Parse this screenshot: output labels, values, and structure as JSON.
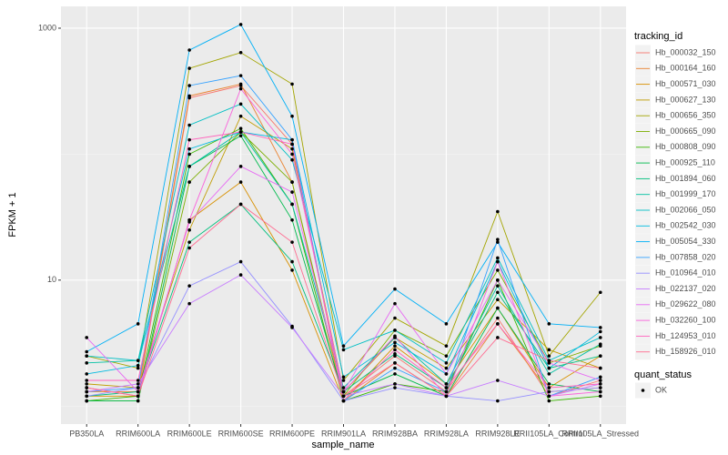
{
  "chart_data": {
    "type": "line",
    "x_label": "sample_name",
    "y_label": "FPKM + 1",
    "categories": [
      "PB350LA",
      "RRIM600LA",
      "RRIM600LE",
      "RRIM600SE",
      "RRIM600PE",
      "RRIM901LA",
      "RRIM928BA",
      "RRIM928LA",
      "RRIM928LE",
      "RRII105LA_Control",
      "RRII105LA_Stressed"
    ],
    "log_y": true,
    "ylim": [
      0.72,
      1490
    ],
    "yticks": [
      10,
      1000
    ],
    "y_minor_ticks": [
      1,
      100
    ],
    "grid": true,
    "legend_title": "tracking_id",
    "legend_position": "right",
    "point_color": "#000000",
    "series": [
      {
        "name": "Hb_000032_150",
        "color": "#F8766D",
        "values": [
          1.4,
          1.2,
          280,
          350,
          120,
          1.2,
          2.5,
          1.3,
          5,
          1.2,
          1.6
        ]
      },
      {
        "name": "Hb_000164_160",
        "color": "#EA8331",
        "values": [
          1.3,
          1.3,
          290,
          360,
          60,
          1.1,
          2.2,
          1.2,
          4.5,
          1.3,
          1.4
        ]
      },
      {
        "name": "Hb_000571_030",
        "color": "#D89000",
        "values": [
          1.2,
          1.2,
          30,
          60,
          12,
          1.1,
          3,
          1.5,
          6,
          1.4,
          2.5
        ]
      },
      {
        "name": "Hb_000627_130",
        "color": "#C09B00",
        "values": [
          1.5,
          1.4,
          25,
          200,
          110,
          1.3,
          3.5,
          2,
          7,
          2.8,
          2
        ]
      },
      {
        "name": "Hb_000656_350",
        "color": "#A3A500",
        "values": [
          2.5,
          2,
          480,
          640,
          360,
          1.6,
          5,
          3,
          35,
          2.5,
          8
        ]
      },
      {
        "name": "Hb_000665_090",
        "color": "#7CAE00",
        "values": [
          1.1,
          1.1,
          60,
          150,
          60,
          1.2,
          4,
          2.5,
          12,
          2.2,
          3
        ]
      },
      {
        "name": "Hb_000808_090",
        "color": "#39B600",
        "values": [
          1.1,
          1.2,
          100,
          160,
          40,
          1.1,
          1.5,
          1.3,
          10,
          1.1,
          1.2
        ]
      },
      {
        "name": "Hb_000925_110",
        "color": "#00BB4E",
        "values": [
          1.1,
          1.1,
          80,
          140,
          30,
          1.2,
          1.8,
          1.2,
          6,
          1.5,
          1.3
        ]
      },
      {
        "name": "Hb_001894_060",
        "color": "#00BF7D",
        "values": [
          1.2,
          1.3,
          20,
          40,
          14,
          1.3,
          2.6,
          1.4,
          8,
          2,
          2.5
        ]
      },
      {
        "name": "Hb_001999_170",
        "color": "#00C1A3",
        "values": [
          2.2,
          2.3,
          80,
          150,
          40,
          1.4,
          3.5,
          1.5,
          9,
          1.8,
          3.1
        ]
      },
      {
        "name": "Hb_002066_050",
        "color": "#00BFC4",
        "values": [
          2.5,
          2.3,
          170,
          250,
          90,
          2.8,
          4,
          2.2,
          15,
          2.3,
          3.5
        ]
      },
      {
        "name": "Hb_002542_030",
        "color": "#00BAE0",
        "values": [
          1.8,
          2.1,
          110,
          150,
          130,
          1.7,
          3.2,
          1.8,
          14,
          2,
          3.9
        ]
      },
      {
        "name": "Hb_005054_330",
        "color": "#00B0F6",
        "values": [
          2.7,
          4.5,
          670,
          1070,
          200,
          3,
          8.5,
          4.5,
          20,
          4.5,
          4.2
        ]
      },
      {
        "name": "Hb_007858_020",
        "color": "#35A2FF",
        "values": [
          1.3,
          1.4,
          350,
          420,
          130,
          1.1,
          2,
          1.3,
          21,
          1.2,
          1.7
        ]
      },
      {
        "name": "Hb_010964_010",
        "color": "#9590FF",
        "values": [
          1.2,
          1.4,
          9,
          14,
          4.3,
          1.1,
          1.4,
          1.2,
          1.1,
          1.3,
          1.4
        ]
      },
      {
        "name": "Hb_022137_020",
        "color": "#C77CFF",
        "values": [
          1.3,
          1.5,
          6.5,
          11,
          4.2,
          1.2,
          1.5,
          1.2,
          1.6,
          1.2,
          1.5
        ]
      },
      {
        "name": "Hb_029622_080",
        "color": "#E76BF3",
        "values": [
          3.5,
          1.3,
          29,
          80,
          50,
          1.3,
          6.5,
          1.8,
          10,
          2.2,
          1.6
        ]
      },
      {
        "name": "Hb_032260_100",
        "color": "#FA62DB",
        "values": [
          1.4,
          1.2,
          30,
          330,
          100,
          1.3,
          3.6,
          1.2,
          14,
          1.2,
          1.3
        ]
      },
      {
        "name": "Hb_124953_010",
        "color": "#FF62BC",
        "values": [
          1.6,
          1.6,
          130,
          150,
          120,
          1.1,
          2.8,
          1.4,
          4.5,
          1.4,
          1.5
        ]
      },
      {
        "name": "Hb_158926_010",
        "color": "#FF6C91",
        "values": [
          1.4,
          1.2,
          18,
          40,
          20,
          1.2,
          2.2,
          1.2,
          3.5,
          2.3,
          2
        ]
      }
    ],
    "shape_legend": {
      "title": "quant_status",
      "labels": [
        "OK"
      ]
    }
  }
}
